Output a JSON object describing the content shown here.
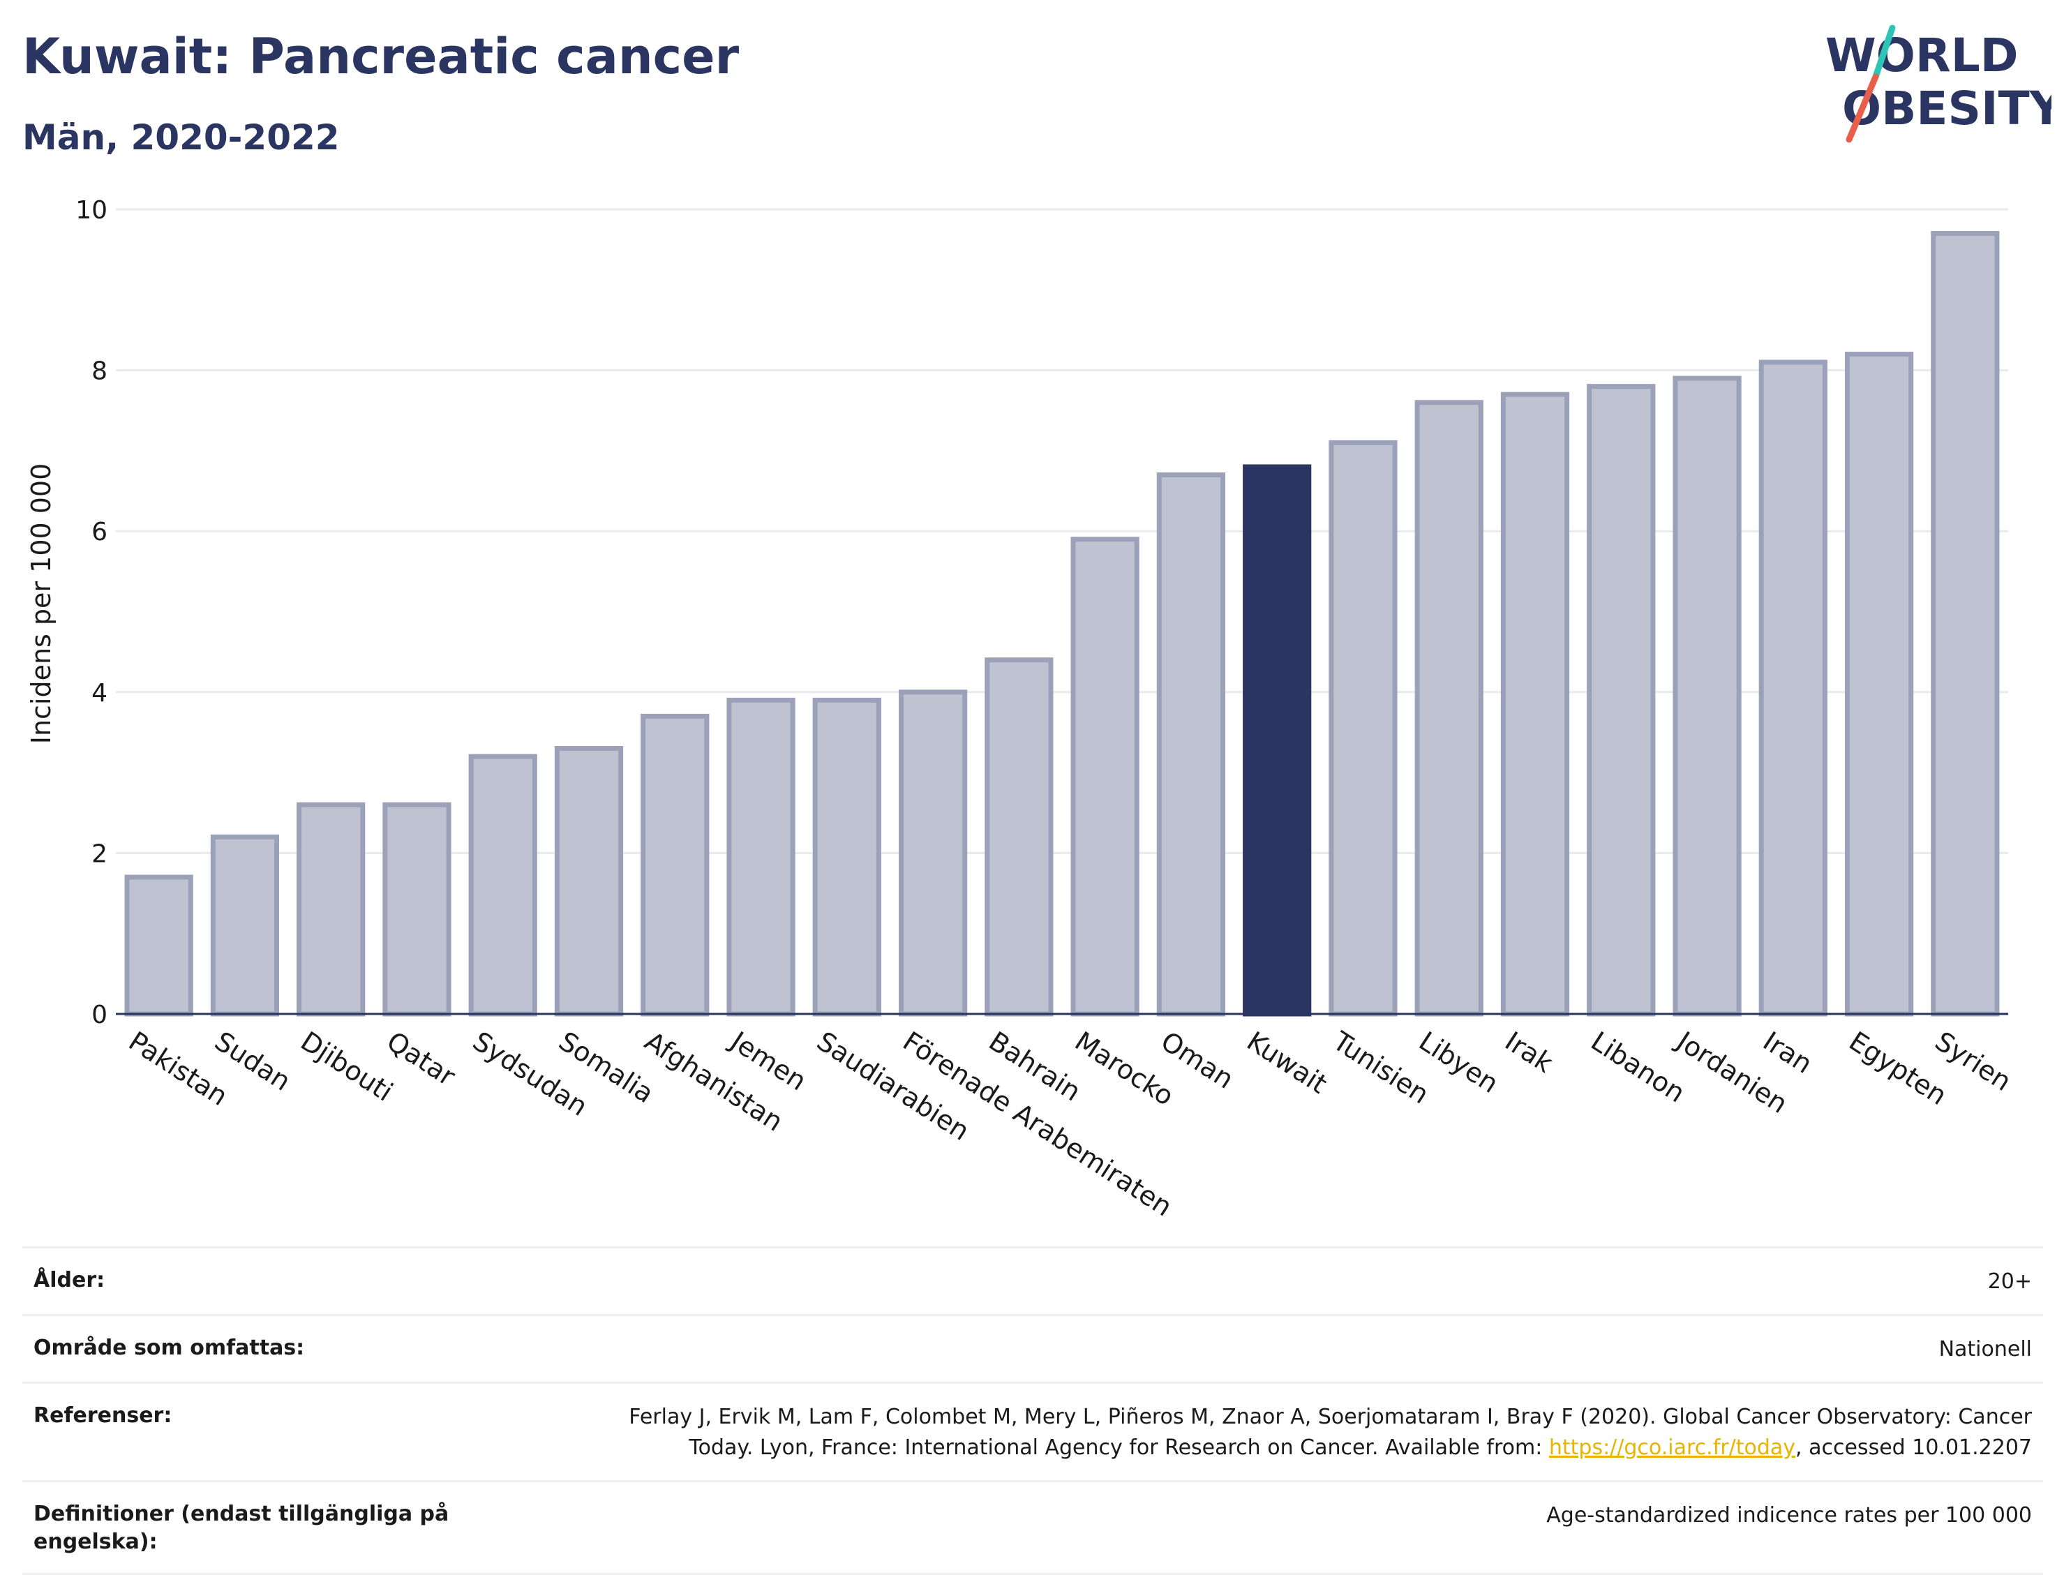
{
  "title": "Kuwait: Pancreatic cancer",
  "subtitle": "Män, 2020-2022",
  "logo": {
    "line1": "WORLD",
    "line2": "OBESITY",
    "accent_colors": [
      "#2ec4b6",
      "#e8604c"
    ]
  },
  "colors": {
    "bar": "#bfc3d1",
    "bar_stroke": "#9ba1b8",
    "highlight": "#2b3561",
    "title": "#2b3561",
    "link": "#e8b400"
  },
  "chart_data": {
    "type": "bar",
    "ylabel": "Incidens per 100 000",
    "xlabel": "",
    "ylim": [
      0,
      10
    ],
    "yticks": [
      0,
      2,
      4,
      6,
      8,
      10
    ],
    "grid": true,
    "highlight": "Kuwait",
    "categories": [
      "Pakistan",
      "Sudan",
      "Djibouti",
      "Qatar",
      "Sydsudan",
      "Somalia",
      "Afghanistan",
      "Jemen",
      "Saudiarabien",
      "Förenade Arabemiraten",
      "Bahrain",
      "Marocko",
      "Oman",
      "Kuwait",
      "Tunisien",
      "Libyen",
      "Irak",
      "Libanon",
      "Jordanien",
      "Iran",
      "Egypten",
      "Syrien"
    ],
    "values": [
      1.7,
      2.2,
      2.6,
      2.6,
      3.2,
      3.3,
      3.7,
      3.9,
      3.9,
      4.0,
      4.4,
      5.9,
      6.7,
      6.8,
      7.1,
      7.6,
      7.7,
      7.8,
      7.9,
      8.1,
      8.2,
      9.7
    ]
  },
  "footer": {
    "age_label": "Ålder:",
    "age_value": "20+",
    "area_label": "Område som omfattas:",
    "area_value": "Nationell",
    "ref_label": "Referenser:",
    "ref_text1": "Ferlay J, Ervik M, Lam F, Colombet M, Mery L, Piñeros M, Znaor A, Soerjomataram I, Bray F (2020). Global Cancer Observatory: Cancer",
    "ref_text2": "Today. Lyon, France: International Agency for Research on Cancer. Available from: ",
    "ref_link": "https://gco.iarc.fr/today",
    "ref_text3": ", accessed 10.01.2207",
    "def_label": "Definitioner (endast tillgängliga på engelska):",
    "def_value": "Age-standardized indicence rates per 100 000"
  }
}
